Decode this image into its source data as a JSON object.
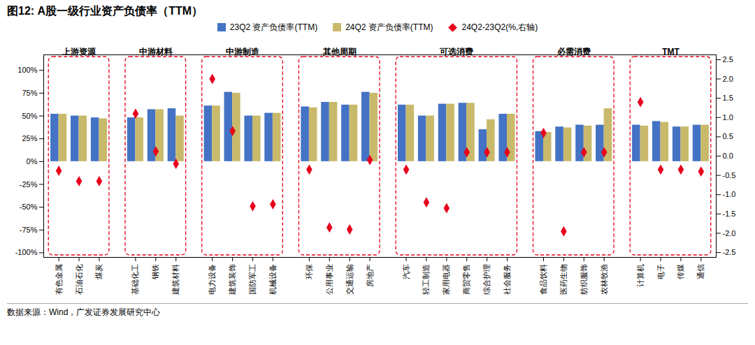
{
  "chart_data": {
    "type": "bar",
    "title": "图12: A股一级行业资产负债率（TTM）",
    "source": "数据来源：Wind，广发证券发展研究中心",
    "legend": "top",
    "grid": false,
    "categories": [
      "有色金属",
      "石油石化",
      "煤炭",
      "基础化工",
      "钢铁",
      "建筑材料",
      "电力设备",
      "建筑装饰",
      "国防军工",
      "机械设备",
      "环保",
      "公用事业",
      "交通运输",
      "房地产",
      "汽车",
      "轻工制造",
      "家用电器",
      "商贸零售",
      "综合护理",
      "社会服务",
      "食品饮料",
      "医药生物",
      "纺织服饰",
      "农林牧渔",
      "计算机",
      "电子",
      "传媒",
      "通信"
    ],
    "groups": [
      {
        "name": "上游资源",
        "color": "#E8001C",
        "categories": [
          "有色金属",
          "石油石化",
          "煤炭"
        ]
      },
      {
        "name": "中游材料",
        "color": "#E8001C",
        "categories": [
          "基础化工",
          "钢铁",
          "建筑材料"
        ]
      },
      {
        "name": "中游制造",
        "color": "#E8001C",
        "categories": [
          "电力设备",
          "建筑装饰",
          "国防军工",
          "机械设备"
        ]
      },
      {
        "name": "其他周期",
        "color": "#E8001C",
        "categories": [
          "环保",
          "公用事业",
          "交通运输",
          "房地产"
        ]
      },
      {
        "name": "可选消费",
        "color": "#E8001C",
        "categories": [
          "汽车",
          "轻工制造",
          "家用电器",
          "商贸零售",
          "综合护理",
          "社会服务"
        ]
      },
      {
        "name": "必需消费",
        "color": "#E8001C",
        "categories": [
          "食品饮料",
          "医药生物",
          "纺织服饰",
          "农林牧渔"
        ]
      },
      {
        "name": "TMT",
        "color": "#E8001C",
        "categories": [
          "计算机",
          "电子",
          "传媒",
          "通信"
        ]
      }
    ],
    "series": [
      {
        "name": "23Q2 资产负债率(TTM)",
        "type": "bar",
        "color": "#4472C4",
        "values": [
          52,
          50,
          48,
          48,
          57,
          58,
          61,
          76,
          50,
          53,
          60,
          65,
          62,
          76,
          62,
          50,
          63,
          64,
          35,
          52,
          33,
          38,
          40,
          40,
          40,
          44,
          38,
          40
        ]
      },
      {
        "name": "24Q2 资产负债率(TTM)",
        "type": "bar",
        "color": "#C9B96A",
        "values": [
          52,
          50,
          47,
          48,
          57,
          50,
          61,
          75,
          50,
          53,
          59,
          65,
          62,
          75,
          62,
          50,
          63,
          64,
          46,
          52,
          32,
          37,
          39,
          58,
          39,
          43,
          38,
          40
        ]
      },
      {
        "name": "24Q2-23Q2(%,右轴)",
        "type": "scatter",
        "marker": "diamond",
        "axis": "y2",
        "color": "#E8001C",
        "values": [
          -0.38,
          -0.65,
          -0.65,
          1.1,
          0.12,
          -0.2,
          2.0,
          0.65,
          -1.3,
          -1.25,
          -0.35,
          -1.85,
          -1.9,
          -0.1,
          -0.35,
          -1.2,
          -1.35,
          0.1,
          0.1,
          0.1,
          0.6,
          -1.95,
          0.1,
          0.1,
          1.4,
          -0.35,
          -0.35,
          -0.4
        ]
      }
    ],
    "ylim": [
      -105,
      117
    ],
    "yticks": [
      {
        "value": -100,
        "label": "-100%"
      },
      {
        "value": -75,
        "label": "-75%"
      },
      {
        "value": -50,
        "label": "-50%"
      },
      {
        "value": -25,
        "label": "-25%"
      },
      {
        "value": 0,
        "label": "0%"
      },
      {
        "value": 25,
        "label": "25%"
      },
      {
        "value": 50,
        "label": "50%"
      },
      {
        "value": 75,
        "label": "75%"
      },
      {
        "value": 100,
        "label": "100%"
      }
    ],
    "y2lim": [
      -2.625,
      2.625
    ],
    "y2ticks": [
      -2.5,
      {
        "value": -2,
        "label": "-2.0"
      },
      -1.5,
      {
        "value": -1,
        "label": "-1.0"
      },
      -0.5,
      {
        "value": 0,
        "label": "0.0"
      },
      0.5,
      {
        "value": 1,
        "label": "1.0"
      },
      1.5,
      {
        "value": 2,
        "label": "2.0"
      },
      2.5
    ]
  }
}
